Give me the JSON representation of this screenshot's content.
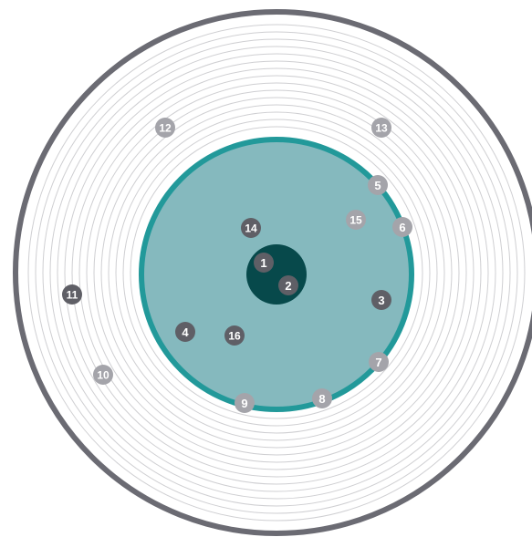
{
  "colors": {
    "background": "#ffffff",
    "outer_rim": "#6b6b73",
    "groove_lines": "#cfcfd2",
    "label_area_fill": "#85b9be",
    "label_area_border": "#22999a",
    "center_hub": "#07494b",
    "marker_dark": "#5f5f66",
    "marker_light": "#a4a4aa",
    "marker_text": "#ffffff"
  },
  "markers": [
    {
      "label": "1",
      "tone": "dark"
    },
    {
      "label": "2",
      "tone": "dark"
    },
    {
      "label": "3",
      "tone": "dark"
    },
    {
      "label": "4",
      "tone": "dark"
    },
    {
      "label": "5",
      "tone": "light"
    },
    {
      "label": "6",
      "tone": "light"
    },
    {
      "label": "7",
      "tone": "light"
    },
    {
      "label": "8",
      "tone": "light"
    },
    {
      "label": "9",
      "tone": "light"
    },
    {
      "label": "10",
      "tone": "light"
    },
    {
      "label": "11",
      "tone": "dark"
    },
    {
      "label": "12",
      "tone": "light"
    },
    {
      "label": "13",
      "tone": "light"
    },
    {
      "label": "14",
      "tone": "dark"
    },
    {
      "label": "15",
      "tone": "light"
    },
    {
      "label": "16",
      "tone": "dark"
    }
  ]
}
